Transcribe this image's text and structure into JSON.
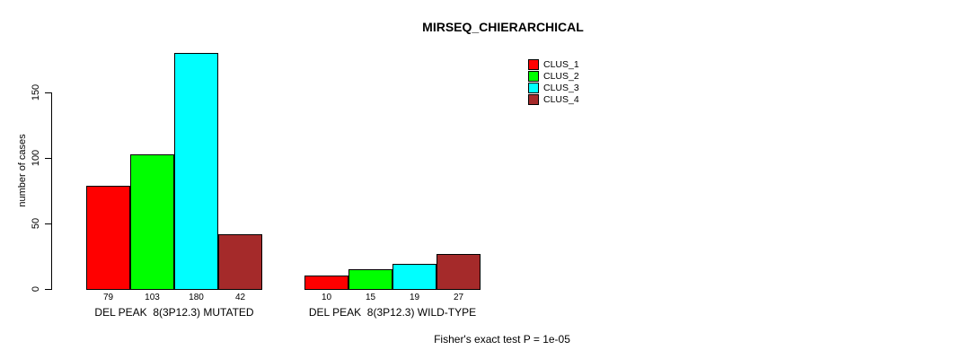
{
  "title": "MIRSEQ_CHIERARCHICAL",
  "ylabel": "number of cases",
  "footer": "Fisher's exact test P = 1e-05",
  "legend": {
    "items": [
      {
        "label": "CLUS_1",
        "color": "#FF0000"
      },
      {
        "label": "CLUS_2",
        "color": "#00FF00"
      },
      {
        "label": "CLUS_3",
        "color": "#00FFFF"
      },
      {
        "label": "CLUS_4",
        "color": "#A52A2A"
      }
    ]
  },
  "chart_data": {
    "type": "bar",
    "title": "MIRSEQ_CHIERARCHICAL",
    "ylabel": "number of cases",
    "xlabel": "",
    "categories": [
      "DEL PEAK  8(3P12.3) MUTATED",
      "DEL PEAK  8(3P12.3) WILD-TYPE"
    ],
    "series": [
      {
        "name": "CLUS_1",
        "color": "#FF0000",
        "values": [
          79,
          10
        ]
      },
      {
        "name": "CLUS_2",
        "color": "#00FF00",
        "values": [
          103,
          15
        ]
      },
      {
        "name": "CLUS_3",
        "color": "#00FFFF",
        "values": [
          180,
          19
        ]
      },
      {
        "name": "CLUS_4",
        "color": "#A52A2A",
        "values": [
          42,
          27
        ]
      }
    ],
    "bar_value_labels": [
      [
        79,
        103,
        180,
        42
      ],
      [
        10,
        15,
        19,
        27
      ]
    ],
    "yticks": [
      0,
      50,
      100,
      150
    ],
    "ylim": [
      0,
      150
    ],
    "grid": false,
    "legend_position": "top-right",
    "annotation": "Fisher's exact test P = 1e-05"
  }
}
